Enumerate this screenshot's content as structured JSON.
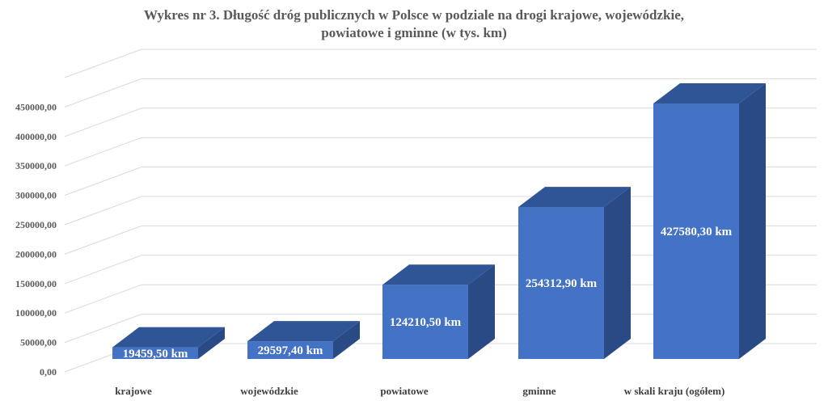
{
  "chart_data": {
    "type": "bar",
    "title_lines": [
      "Wykres nr 3. Długość dróg publicznych w Polsce w podziale na drogi krajowe, wojewódzkie,",
      "powiatowe i gminne (w tys. km)"
    ],
    "categories": [
      "krajowe",
      "wojewódzkie",
      "powiatowe",
      "gminne",
      "w skali kraju (ogółem)"
    ],
    "values": [
      19459.5,
      29597.4,
      124210.5,
      254312.9,
      427580.3
    ],
    "data_labels": [
      "19459,50 km",
      "29597,40 km",
      "124210,50 km",
      "254312,90 km",
      "427580,30 km"
    ],
    "y_ticks": [
      "0,00",
      "50000,00",
      "100000,00",
      "150000,00",
      "200000,00",
      "250000,00",
      "300000,00",
      "350000,00",
      "400000,00",
      "450000,00"
    ],
    "ylim": [
      0,
      500000
    ],
    "grid": true,
    "three_d": true,
    "legend": "none",
    "colors": {
      "front": "#4472c4",
      "top": "#2f5596",
      "side": "#2a4a86",
      "grid": "#d9d9d9"
    }
  }
}
